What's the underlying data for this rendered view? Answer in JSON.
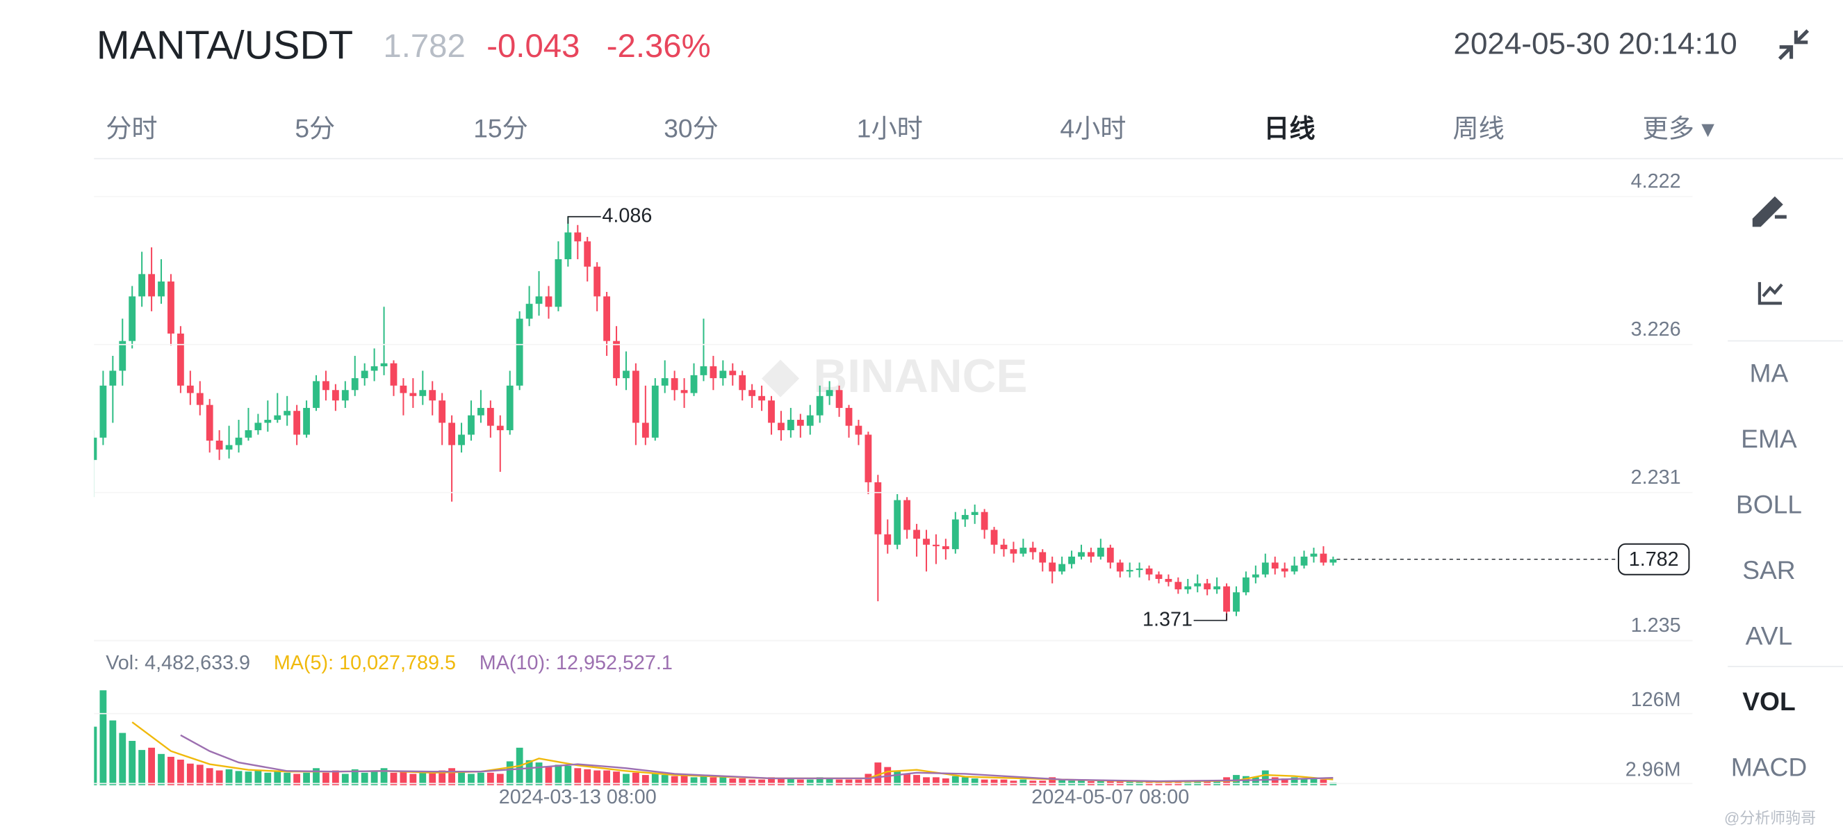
{
  "header": {
    "symbol": "MANTA/USDT",
    "price": "1.782",
    "change": "-0.043",
    "change_pct": "-2.36%",
    "datetime": "2024-05-30 20:14:10"
  },
  "tabs": [
    {
      "label": "分时"
    },
    {
      "label": "5分"
    },
    {
      "label": "15分"
    },
    {
      "label": "30分"
    },
    {
      "label": "1小时"
    },
    {
      "label": "4小时"
    },
    {
      "label": "日线",
      "active": true
    },
    {
      "label": "周线"
    },
    {
      "label": "更多 ▾"
    }
  ],
  "indicators": [
    {
      "label": "MA"
    },
    {
      "label": "EMA"
    },
    {
      "label": "BOLL"
    },
    {
      "label": "SAR"
    },
    {
      "label": "AVL"
    },
    {
      "label": "VOL",
      "active": true
    },
    {
      "label": "MACD"
    }
  ],
  "watermark": "BINANCE",
  "credit": "@分析师驹哥",
  "chart_data": [
    {
      "type": "candlestick",
      "up_color": "#2ebd85",
      "down_color": "#f6465d",
      "grid": true,
      "current_price_line": true,
      "categories": [
        null,
        null,
        null,
        null,
        null,
        null,
        null,
        null,
        null,
        null,
        null,
        null,
        null,
        null,
        null,
        null,
        null,
        null,
        null,
        null,
        null,
        null,
        null,
        null,
        null,
        null,
        null,
        null,
        null,
        null,
        null,
        null,
        null,
        null,
        null,
        null,
        null,
        null,
        null,
        null,
        null,
        null,
        null,
        null,
        null,
        null,
        null,
        null,
        null,
        null,
        "2024-03-13 08:00",
        null,
        null,
        null,
        null,
        null,
        null,
        null,
        null,
        null,
        null,
        null,
        null,
        null,
        null,
        null,
        null,
        null,
        null,
        null,
        null,
        null,
        null,
        null,
        null,
        null,
        null,
        null,
        null,
        null,
        null,
        null,
        null,
        null,
        null,
        null,
        null,
        null,
        null,
        null,
        null,
        null,
        null,
        null,
        null,
        null,
        null,
        null,
        null,
        null,
        null,
        null,
        null,
        null,
        null,
        "2024-05-07 08:00",
        null,
        null,
        null,
        null,
        null,
        null,
        null,
        null,
        null,
        null,
        null,
        null,
        null,
        null,
        null,
        null,
        null,
        null,
        null,
        null,
        null,
        null,
        null
      ],
      "open": [
        2.45,
        2.6,
        2.95,
        3.05,
        3.25,
        3.55,
        3.7,
        3.55,
        3.65,
        3.3,
        2.95,
        2.9,
        2.82,
        2.58,
        2.52,
        2.55,
        2.6,
        2.65,
        2.7,
        2.72,
        2.75,
        2.78,
        2.62,
        2.8,
        2.98,
        2.92,
        2.85,
        2.92,
        3.0,
        3.05,
        3.08,
        3.1,
        2.95,
        2.9,
        2.88,
        2.92,
        2.85,
        2.7,
        2.55,
        2.62,
        2.75,
        2.8,
        2.68,
        2.65,
        2.95,
        3.4,
        3.5,
        3.55,
        3.48,
        3.8,
        3.98,
        3.92,
        3.75,
        3.55,
        3.25,
        3.0,
        3.05,
        2.7,
        2.6,
        2.95,
        3.0,
        2.92,
        2.9,
        3.02,
        3.08,
        3.0,
        3.05,
        3.02,
        2.92,
        2.88,
        2.85,
        2.7,
        2.65,
        2.72,
        2.68,
        2.75,
        2.88,
        2.92,
        2.8,
        2.68,
        2.62,
        2.3,
        1.95,
        1.88,
        2.18,
        1.98,
        1.92,
        1.88,
        1.87,
        1.85,
        2.05,
        2.08,
        2.1,
        1.98,
        1.88,
        1.85,
        1.82,
        1.86,
        1.83,
        1.76,
        1.7,
        1.75,
        1.8,
        1.83,
        1.8,
        1.86,
        1.76,
        1.7,
        1.71,
        1.72,
        1.68,
        1.65,
        1.63,
        1.58,
        1.6,
        1.62,
        1.58,
        1.6,
        1.43,
        1.56,
        1.66,
        1.68,
        1.76,
        1.72,
        1.7,
        1.74,
        1.8,
        1.82,
        1.76
      ],
      "high": [
        2.65,
        3.05,
        3.15,
        3.4,
        3.62,
        3.85,
        3.88,
        3.8,
        3.7,
        3.35,
        3.05,
        2.98,
        2.86,
        2.65,
        2.68,
        2.72,
        2.8,
        2.76,
        2.85,
        2.9,
        2.88,
        2.82,
        2.85,
        3.02,
        3.05,
        2.96,
        2.98,
        3.15,
        3.1,
        3.2,
        3.48,
        3.12,
        3.0,
        3.0,
        3.05,
        2.98,
        2.9,
        2.75,
        2.7,
        2.85,
        2.92,
        2.85,
        2.75,
        3.05,
        3.45,
        3.62,
        3.72,
        3.62,
        3.92,
        4.086,
        4.03,
        3.95,
        3.78,
        3.58,
        3.35,
        3.18,
        3.1,
        2.95,
        3.0,
        3.12,
        3.05,
        3.0,
        3.1,
        3.4,
        3.15,
        3.12,
        3.1,
        3.05,
        2.96,
        2.95,
        2.88,
        2.78,
        2.8,
        2.76,
        2.82,
        2.95,
        2.98,
        2.95,
        2.82,
        2.72,
        2.64,
        2.35,
        2.05,
        2.22,
        2.2,
        2.02,
        1.98,
        1.95,
        1.92,
        2.1,
        2.12,
        2.15,
        2.12,
        2.0,
        1.92,
        1.9,
        1.92,
        1.9,
        1.85,
        1.8,
        1.8,
        1.84,
        1.88,
        1.86,
        1.92,
        1.88,
        1.78,
        1.76,
        1.76,
        1.74,
        1.7,
        1.68,
        1.66,
        1.65,
        1.68,
        1.65,
        1.66,
        1.62,
        1.6,
        1.7,
        1.74,
        1.82,
        1.8,
        1.76,
        1.8,
        1.84,
        1.86,
        1.87,
        1.8
      ],
      "low": [
        2.2,
        2.55,
        2.7,
        2.95,
        3.2,
        3.48,
        3.45,
        3.5,
        3.22,
        2.9,
        2.82,
        2.75,
        2.5,
        2.45,
        2.46,
        2.5,
        2.58,
        2.62,
        2.64,
        2.7,
        2.68,
        2.55,
        2.6,
        2.78,
        2.85,
        2.78,
        2.8,
        2.88,
        2.95,
        2.98,
        3.02,
        2.88,
        2.75,
        2.8,
        2.82,
        2.75,
        2.55,
        2.17,
        2.5,
        2.58,
        2.7,
        2.6,
        2.37,
        2.62,
        2.92,
        3.35,
        3.42,
        3.4,
        3.45,
        3.75,
        3.8,
        3.65,
        3.45,
        3.15,
        2.95,
        2.92,
        2.55,
        2.55,
        2.58,
        2.9,
        2.85,
        2.8,
        2.88,
        2.98,
        2.92,
        2.95,
        2.95,
        2.85,
        2.8,
        2.78,
        2.62,
        2.58,
        2.6,
        2.6,
        2.62,
        2.7,
        2.82,
        2.74,
        2.6,
        2.55,
        2.22,
        1.5,
        1.82,
        1.85,
        1.92,
        1.8,
        1.7,
        1.75,
        1.78,
        1.82,
        2.0,
        2.02,
        1.92,
        1.82,
        1.8,
        1.76,
        1.8,
        1.78,
        1.7,
        1.62,
        1.68,
        1.72,
        1.78,
        1.76,
        1.78,
        1.72,
        1.66,
        1.66,
        1.66,
        1.64,
        1.62,
        1.6,
        1.55,
        1.55,
        1.56,
        1.54,
        1.55,
        1.371,
        1.4,
        1.54,
        1.62,
        1.66,
        1.68,
        1.66,
        1.68,
        1.72,
        1.76,
        1.74,
        1.74
      ],
      "close": [
        2.6,
        2.95,
        3.05,
        3.25,
        3.55,
        3.7,
        3.55,
        3.65,
        3.3,
        2.95,
        2.9,
        2.82,
        2.58,
        2.52,
        2.55,
        2.6,
        2.65,
        2.7,
        2.72,
        2.75,
        2.78,
        2.62,
        2.8,
        2.98,
        2.92,
        2.85,
        2.92,
        3.0,
        3.05,
        3.08,
        3.1,
        2.95,
        2.9,
        2.88,
        2.92,
        2.85,
        2.7,
        2.55,
        2.62,
        2.75,
        2.8,
        2.68,
        2.65,
        2.95,
        3.4,
        3.5,
        3.55,
        3.48,
        3.8,
        3.98,
        3.92,
        3.75,
        3.55,
        3.25,
        3.0,
        3.05,
        2.7,
        2.6,
        2.95,
        3.0,
        2.92,
        2.9,
        3.02,
        3.08,
        3.0,
        3.05,
        3.02,
        2.92,
        2.88,
        2.85,
        2.7,
        2.65,
        2.72,
        2.68,
        2.75,
        2.88,
        2.92,
        2.8,
        2.68,
        2.62,
        2.3,
        1.95,
        1.88,
        2.18,
        1.98,
        1.92,
        1.88,
        1.87,
        1.85,
        2.05,
        2.08,
        2.1,
        1.98,
        1.88,
        1.85,
        1.82,
        1.86,
        1.83,
        1.76,
        1.7,
        1.75,
        1.8,
        1.83,
        1.8,
        1.86,
        1.76,
        1.7,
        1.71,
        1.72,
        1.68,
        1.65,
        1.63,
        1.58,
        1.6,
        1.62,
        1.58,
        1.6,
        1.43,
        1.56,
        1.66,
        1.68,
        1.76,
        1.72,
        1.7,
        1.74,
        1.8,
        1.82,
        1.76,
        1.782
      ],
      "ylim": [
        1.235,
        4.476
      ],
      "yticks": [
        4.222,
        3.226,
        2.231,
        1.235
      ]
    },
    {
      "type": "bar",
      "grid": true,
      "legend": [
        {
          "text": "Vol: 4,482,633.9",
          "color": "#707a8a"
        },
        {
          "text": "MA(5): 10,027,789.5",
          "color": "#f0b90b"
        },
        {
          "text": "MA(10): 12,952,527.1",
          "color": "#9c6fb0"
        }
      ],
      "values": [
        103,
        167,
        114,
        92,
        78,
        62,
        66,
        55,
        50,
        45,
        38,
        36,
        30,
        26,
        28,
        25,
        24,
        26,
        22,
        24,
        22,
        20,
        22,
        30,
        22,
        26,
        20,
        28,
        22,
        26,
        30,
        22,
        24,
        20,
        22,
        24,
        26,
        30,
        24,
        20,
        22,
        22,
        20,
        42,
        66,
        44,
        40,
        32,
        36,
        34,
        30,
        28,
        26,
        26,
        24,
        20,
        22,
        18,
        20,
        18,
        16,
        18,
        14,
        16,
        14,
        14,
        12,
        12,
        10,
        10,
        14,
        12,
        12,
        10,
        10,
        14,
        12,
        10,
        10,
        10,
        20,
        40,
        32,
        26,
        20,
        18,
        14,
        14,
        12,
        16,
        14,
        12,
        10,
        10,
        10,
        8,
        10,
        8,
        8,
        14,
        10,
        8,
        8,
        7,
        10,
        8,
        8,
        7,
        6,
        6,
        6,
        6,
        6,
        5,
        6,
        6,
        8,
        14,
        18,
        16,
        14,
        26,
        14,
        12,
        14,
        12,
        12,
        10,
        4.48
      ],
      "lines": [
        {
          "color": "#f0b90b",
          "x": [
            4,
            8,
            12,
            16,
            20,
            25,
            30,
            35,
            40,
            44,
            46,
            50,
            55,
            60,
            70,
            80,
            82,
            85,
            90,
            100,
            110,
            118,
            121,
            124,
            128
          ],
          "values": [
            111,
            60,
            37,
            27,
            24,
            24,
            25,
            22,
            24,
            34,
            47,
            35,
            25,
            18,
            12,
            12,
            24,
            27,
            15,
            10,
            6,
            8,
            18,
            16,
            10.03
          ]
        },
        {
          "color": "#9c6fb0",
          "x": [
            9,
            12,
            15,
            20,
            25,
            30,
            35,
            40,
            45,
            50,
            55,
            60,
            70,
            80,
            85,
            90,
            100,
            110,
            120,
            128
          ],
          "values": [
            88,
            60,
            40,
            25,
            24,
            25,
            24,
            24,
            30,
            37,
            30,
            20,
            12,
            12,
            22,
            20,
            10,
            7,
            9,
            12.95
          ]
        }
      ],
      "ylim": [
        0,
        182
      ],
      "yticks": [
        {
          "value": 126,
          "label": "126M"
        },
        {
          "value": 2.96,
          "label": "2.96M"
        }
      ]
    }
  ]
}
